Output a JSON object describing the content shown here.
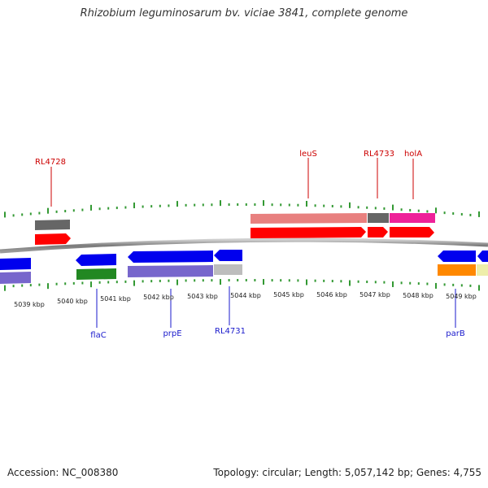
{
  "title": "Rhizobium leguminosarum bv. viciae 3841, complete genome",
  "footer": {
    "accession": "Accession: NC_008380",
    "stats": "Topology: circular; Length: 5,057,142 bp; Genes: 4,755"
  },
  "scale_labels": [
    "5039 kbp",
    "5040 kbp",
    "5041 kbp",
    "5042 kbp",
    "5043 kbp",
    "5044 kbp",
    "5045 kbp",
    "5046 kbp",
    "5047 kbp",
    "5048 kbp",
    "5049 kbp"
  ],
  "gene_labels": {
    "top": [
      "RL4728",
      "leuS",
      "RL4733",
      "holA"
    ],
    "bottom": [
      "flaC",
      "prpE",
      "RL4731",
      "parB"
    ]
  },
  "colors": {
    "forward_cds": "#ff0000",
    "reverse_cds": "#0000ee",
    "forward_label": "#cc0000",
    "reverse_label": "#1a1acc",
    "tick": "#339933",
    "backbone": "#888888"
  }
}
